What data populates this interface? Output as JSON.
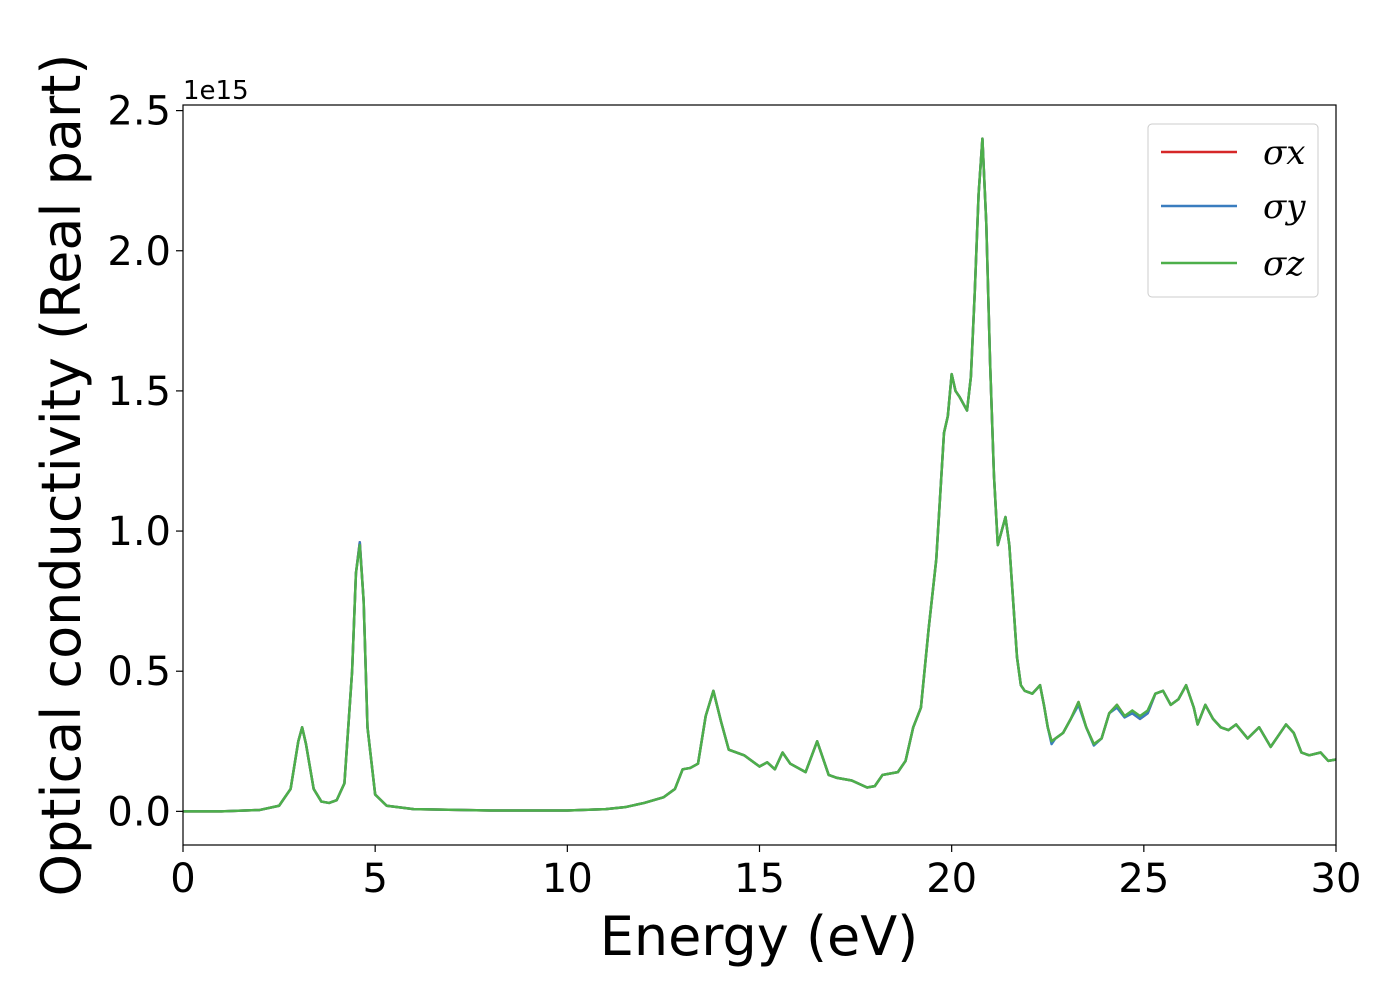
{
  "chart_data": {
    "type": "line",
    "xlabel": "Energy (eV)",
    "ylabel": "Optical conductivity (Real part)",
    "y_offset_label": "1e15",
    "xlim": [
      0,
      30
    ],
    "ylim": [
      -0.12,
      2.52
    ],
    "x_ticks": [
      0,
      5,
      10,
      15,
      20,
      25,
      30
    ],
    "x_tick_labels": [
      "0",
      "5",
      "10",
      "15",
      "20",
      "25",
      "30"
    ],
    "y_ticks": [
      0.0,
      0.5,
      1.0,
      1.5,
      2.0,
      2.5
    ],
    "y_tick_labels": [
      "0.0",
      "0.5",
      "1.0",
      "1.5",
      "2.0",
      "2.5"
    ],
    "grid": false,
    "legend_position": "top-right",
    "colors": {
      "sigma_x": "#d62728",
      "sigma_y": "#3a7dbf",
      "sigma_z": "#4daf4a"
    },
    "x": [
      0,
      1,
      2,
      2.5,
      2.8,
      3.0,
      3.1,
      3.2,
      3.4,
      3.6,
      3.8,
      4.0,
      4.2,
      4.4,
      4.5,
      4.6,
      4.7,
      4.8,
      5.0,
      5.3,
      6,
      8,
      10,
      11,
      11.5,
      12,
      12.5,
      12.8,
      13.0,
      13.2,
      13.4,
      13.6,
      13.8,
      14.0,
      14.2,
      14.6,
      15.0,
      15.2,
      15.4,
      15.6,
      15.8,
      16.2,
      16.5,
      16.8,
      17.0,
      17.4,
      17.8,
      18.0,
      18.2,
      18.6,
      18.8,
      19.0,
      19.2,
      19.4,
      19.6,
      19.8,
      19.9,
      20.0,
      20.1,
      20.2,
      20.4,
      20.5,
      20.6,
      20.7,
      20.8,
      20.9,
      21.0,
      21.1,
      21.2,
      21.3,
      21.4,
      21.5,
      21.6,
      21.7,
      21.8,
      21.9,
      22.1,
      22.3,
      22.4,
      22.5,
      22.6,
      22.7,
      22.9,
      23.1,
      23.3,
      23.5,
      23.7,
      23.9,
      24.1,
      24.3,
      24.5,
      24.7,
      24.9,
      25.1,
      25.3,
      25.5,
      25.7,
      25.9,
      26.1,
      26.3,
      26.4,
      26.6,
      26.8,
      27.0,
      27.2,
      27.4,
      27.7,
      28.0,
      28.3,
      28.5,
      28.7,
      28.9,
      29.1,
      29.3,
      29.6,
      29.8,
      30.0
    ],
    "series": [
      {
        "name": "σx",
        "values": [
          0.0,
          0.0,
          0.005,
          0.02,
          0.08,
          0.25,
          0.3,
          0.24,
          0.08,
          0.035,
          0.03,
          0.04,
          0.1,
          0.5,
          0.85,
          0.96,
          0.75,
          0.3,
          0.06,
          0.02,
          0.008,
          0.003,
          0.003,
          0.008,
          0.015,
          0.03,
          0.05,
          0.08,
          0.15,
          0.155,
          0.17,
          0.34,
          0.43,
          0.32,
          0.22,
          0.2,
          0.16,
          0.175,
          0.15,
          0.21,
          0.17,
          0.14,
          0.25,
          0.13,
          0.12,
          0.11,
          0.085,
          0.09,
          0.13,
          0.14,
          0.18,
          0.3,
          0.37,
          0.65,
          0.9,
          1.35,
          1.41,
          1.56,
          1.5,
          1.48,
          1.43,
          1.55,
          1.85,
          2.2,
          2.4,
          2.1,
          1.6,
          1.2,
          0.95,
          1.0,
          1.05,
          0.95,
          0.75,
          0.55,
          0.45,
          0.43,
          0.42,
          0.45,
          0.38,
          0.3,
          0.25,
          0.26,
          0.28,
          0.33,
          0.39,
          0.3,
          0.24,
          0.26,
          0.35,
          0.38,
          0.34,
          0.35,
          0.33,
          0.35,
          0.42,
          0.43,
          0.38,
          0.4,
          0.45,
          0.37,
          0.31,
          0.38,
          0.33,
          0.3,
          0.29,
          0.31,
          0.26,
          0.3,
          0.23,
          0.27,
          0.31,
          0.28,
          0.21,
          0.2,
          0.21,
          0.18,
          0.185
        ]
      },
      {
        "name": "σy",
        "values": [
          0.0,
          0.0,
          0.005,
          0.02,
          0.08,
          0.25,
          0.3,
          0.24,
          0.08,
          0.035,
          0.03,
          0.04,
          0.1,
          0.5,
          0.85,
          0.96,
          0.75,
          0.3,
          0.06,
          0.02,
          0.008,
          0.003,
          0.003,
          0.008,
          0.015,
          0.03,
          0.05,
          0.08,
          0.15,
          0.155,
          0.17,
          0.34,
          0.43,
          0.32,
          0.22,
          0.2,
          0.16,
          0.175,
          0.15,
          0.21,
          0.17,
          0.14,
          0.25,
          0.13,
          0.12,
          0.11,
          0.085,
          0.09,
          0.13,
          0.14,
          0.18,
          0.3,
          0.37,
          0.65,
          0.9,
          1.35,
          1.41,
          1.56,
          1.5,
          1.48,
          1.43,
          1.55,
          1.85,
          2.2,
          2.4,
          2.1,
          1.6,
          1.2,
          0.95,
          1.0,
          1.05,
          0.95,
          0.75,
          0.55,
          0.45,
          0.43,
          0.42,
          0.45,
          0.38,
          0.3,
          0.24,
          0.26,
          0.28,
          0.33,
          0.38,
          0.3,
          0.235,
          0.26,
          0.35,
          0.37,
          0.335,
          0.35,
          0.33,
          0.35,
          0.42,
          0.43,
          0.38,
          0.4,
          0.45,
          0.37,
          0.31,
          0.38,
          0.33,
          0.3,
          0.29,
          0.31,
          0.26,
          0.3,
          0.23,
          0.27,
          0.31,
          0.28,
          0.21,
          0.2,
          0.21,
          0.18,
          0.185
        ]
      },
      {
        "name": "σz",
        "values": [
          0.0,
          0.0,
          0.005,
          0.02,
          0.08,
          0.25,
          0.3,
          0.24,
          0.08,
          0.035,
          0.03,
          0.04,
          0.1,
          0.5,
          0.85,
          0.95,
          0.75,
          0.3,
          0.06,
          0.02,
          0.008,
          0.003,
          0.003,
          0.008,
          0.015,
          0.03,
          0.05,
          0.08,
          0.15,
          0.155,
          0.17,
          0.34,
          0.43,
          0.32,
          0.22,
          0.2,
          0.16,
          0.175,
          0.15,
          0.21,
          0.17,
          0.14,
          0.25,
          0.13,
          0.12,
          0.11,
          0.085,
          0.09,
          0.13,
          0.14,
          0.18,
          0.3,
          0.37,
          0.65,
          0.9,
          1.35,
          1.41,
          1.56,
          1.5,
          1.48,
          1.43,
          1.55,
          1.85,
          2.2,
          2.4,
          2.1,
          1.6,
          1.2,
          0.95,
          1.0,
          1.05,
          0.95,
          0.75,
          0.55,
          0.45,
          0.43,
          0.42,
          0.45,
          0.38,
          0.3,
          0.25,
          0.26,
          0.28,
          0.33,
          0.39,
          0.3,
          0.24,
          0.26,
          0.35,
          0.38,
          0.34,
          0.36,
          0.34,
          0.36,
          0.42,
          0.43,
          0.38,
          0.4,
          0.45,
          0.37,
          0.31,
          0.38,
          0.33,
          0.3,
          0.29,
          0.31,
          0.26,
          0.3,
          0.23,
          0.27,
          0.31,
          0.28,
          0.21,
          0.2,
          0.21,
          0.18,
          0.185
        ]
      }
    ]
  }
}
